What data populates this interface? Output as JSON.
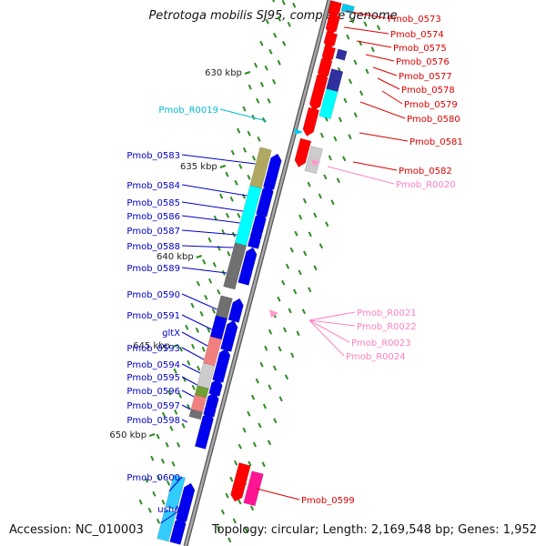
{
  "title": "Petrotoga mobilis SJ95, complete genome",
  "footer": {
    "accession": "Accession: NC_010003",
    "stats": "Topology: circular; Length: 2,169,548 bp; Genes: 1,952"
  },
  "scale_ticks": [
    "630 kbp",
    "635 kbp",
    "640 kbp",
    "645 kbp",
    "650 kbp"
  ],
  "colors": {
    "backbone": "#808080",
    "forward_label": "#0000c8",
    "reverse_label": "#dd0000",
    "rna_forward_label": "#00bcd4",
    "rna_reverse_label": "#ff80c0",
    "gene_blue": "#0000ee",
    "gene_red": "#ff0000",
    "gene_cyan": "#00ffff",
    "gene_navy": "#3030a0",
    "gene_olive": "#b0a860",
    "gene_gray": "#707070",
    "gene_lightgray": "#cccccc",
    "gene_salmon": "#f08080",
    "gene_green": "#70a030",
    "gene_pink": "#ff69b4",
    "gene_magenta": "#ff1493",
    "rna_pink": "#ff99cc",
    "rna_cyan": "#00ccee",
    "gc_tick": "#2e8b22"
  },
  "left_labels": [
    {
      "text": "Pmob_R0019",
      "kind": "rna"
    },
    {
      "text": "Pmob_0583",
      "kind": "gene"
    },
    {
      "text": "Pmob_0584",
      "kind": "gene"
    },
    {
      "text": "Pmob_0585",
      "kind": "gene"
    },
    {
      "text": "Pmob_0586",
      "kind": "gene"
    },
    {
      "text": "Pmob_0587",
      "kind": "gene"
    },
    {
      "text": "Pmob_0588",
      "kind": "gene"
    },
    {
      "text": "Pmob_0589",
      "kind": "gene"
    },
    {
      "text": "Pmob_0590",
      "kind": "gene"
    },
    {
      "text": "Pmob_0591",
      "kind": "gene"
    },
    {
      "text": "gltX",
      "kind": "gene"
    },
    {
      "text": "Pmob_0593",
      "kind": "gene"
    },
    {
      "text": "Pmob_0594",
      "kind": "gene"
    },
    {
      "text": "Pmob_0595",
      "kind": "gene"
    },
    {
      "text": "Pmob_0596",
      "kind": "gene"
    },
    {
      "text": "Pmob_0597",
      "kind": "gene"
    },
    {
      "text": "Pmob_0598",
      "kind": "gene"
    },
    {
      "text": "Pmob_0600",
      "kind": "gene"
    },
    {
      "text": "ushA",
      "kind": "gene"
    }
  ],
  "right_labels": [
    {
      "text": "Pmob_0573",
      "kind": "gene"
    },
    {
      "text": "Pmob_0574",
      "kind": "gene"
    },
    {
      "text": "Pmob_0575",
      "kind": "gene"
    },
    {
      "text": "Pmob_0576",
      "kind": "gene"
    },
    {
      "text": "Pmob_0577",
      "kind": "gene"
    },
    {
      "text": "Pmob_0578",
      "kind": "gene"
    },
    {
      "text": "Pmob_0579",
      "kind": "gene"
    },
    {
      "text": "Pmob_0580",
      "kind": "gene"
    },
    {
      "text": "Pmob_0581",
      "kind": "gene"
    },
    {
      "text": "Pmob_0582",
      "kind": "gene"
    },
    {
      "text": "Pmob_R0020",
      "kind": "rna"
    },
    {
      "text": "Pmob_R0021",
      "kind": "rna"
    },
    {
      "text": "Pmob_R0022",
      "kind": "rna"
    },
    {
      "text": "Pmob_R0023",
      "kind": "rna"
    },
    {
      "text": "Pmob_R0024",
      "kind": "rna"
    },
    {
      "text": "Pmob_0599",
      "kind": "gene"
    }
  ]
}
